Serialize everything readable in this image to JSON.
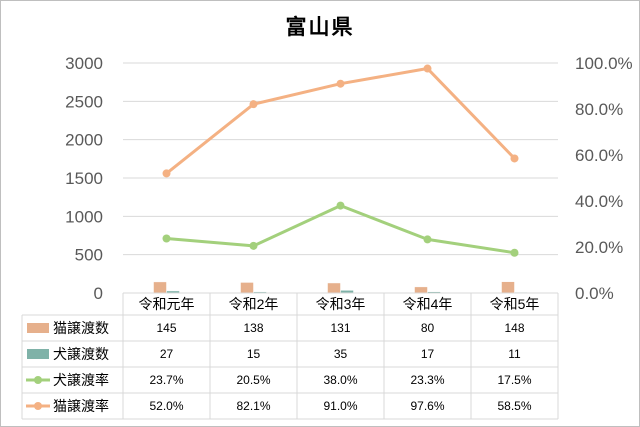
{
  "chart_data": {
    "type": "bar",
    "title": "富山県",
    "categories": [
      "令和元年",
      "令和2年",
      "令和3年",
      "令和4年",
      "令和5年"
    ],
    "y_left": {
      "min": 0,
      "max": 3000,
      "step": 500,
      "ticks": [
        "0",
        "500",
        "1000",
        "1500",
        "2000",
        "2500",
        "3000"
      ]
    },
    "y_right": {
      "min": 0,
      "max": 1.0,
      "step": 0.2,
      "ticks": [
        "0.0%",
        "20.0%",
        "40.0%",
        "60.0%",
        "80.0%",
        "100.0%"
      ]
    },
    "grid": true,
    "legend_position": "data-table",
    "series": [
      {
        "name": "猫譲渡数",
        "kind": "bar",
        "axis": "left",
        "color": "#e6b08c",
        "values": [
          145,
          138,
          131,
          80,
          148
        ],
        "labels": [
          "145",
          "138",
          "131",
          "80",
          "148"
        ]
      },
      {
        "name": "犬譲渡数",
        "kind": "bar",
        "axis": "left",
        "color": "#7fb2a8",
        "values": [
          27,
          15,
          35,
          17,
          11
        ],
        "labels": [
          "27",
          "15",
          "35",
          "17",
          "11"
        ]
      },
      {
        "name": "犬譲渡率",
        "kind": "line",
        "axis": "right",
        "color": "#a3d07c",
        "values": [
          0.237,
          0.205,
          0.38,
          0.233,
          0.175
        ],
        "labels": [
          "23.7%",
          "20.5%",
          "38.0%",
          "23.3%",
          "17.5%"
        ]
      },
      {
        "name": "猫譲渡率",
        "kind": "line",
        "axis": "right",
        "color": "#f4b183",
        "values": [
          0.52,
          0.821,
          0.91,
          0.976,
          0.585
        ],
        "labels": [
          "52.0%",
          "82.1%",
          "91.0%",
          "97.6%",
          "58.5%"
        ]
      }
    ]
  }
}
